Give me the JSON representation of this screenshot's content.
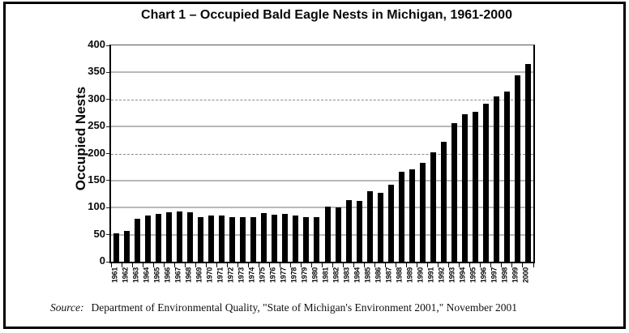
{
  "page": {
    "source_label": "Source:",
    "source_text": "Department of Environmental Quality, \"State of Michigan's Environment 2001,\" November 2001"
  },
  "chart_data": {
    "type": "bar",
    "title": "Chart 1 – Occupied Bald Eagle Nests in Michigan, 1961-2000",
    "xlabel": "",
    "ylabel": "Occupied Nests",
    "ylim": [
      0,
      400
    ],
    "y_ticks": [
      0,
      50,
      100,
      150,
      200,
      250,
      300,
      350,
      400
    ],
    "dashed_gridlines": [
      200,
      300
    ],
    "grid": true,
    "legend": false,
    "colors": {
      "bar": "#000000",
      "gridline_solid": "#b8b8b8",
      "gridline_dashed": "#8a8a8a"
    },
    "categories": [
      "1961",
      "1962",
      "1963",
      "1964",
      "1965",
      "1966",
      "1967",
      "1968",
      "1969",
      "1970",
      "1971",
      "1972",
      "1973",
      "1974",
      "1975",
      "1976",
      "1977",
      "1978",
      "1979",
      "1980",
      "1981",
      "1982",
      "1983",
      "1984",
      "1985",
      "1986",
      "1987",
      "1988",
      "1989",
      "1990",
      "1991",
      "1992",
      "1993",
      "1994",
      "1995",
      "1996",
      "1997",
      "1998",
      "1999",
      "2000"
    ],
    "values": [
      52,
      57,
      80,
      86,
      89,
      91,
      93,
      91,
      83,
      85,
      85,
      82,
      83,
      82,
      90,
      87,
      88,
      86,
      83,
      83,
      102,
      101,
      114,
      113,
      131,
      127,
      142,
      166,
      171,
      183,
      202,
      221,
      256,
      272,
      277,
      292,
      306,
      314,
      345,
      365
    ]
  }
}
